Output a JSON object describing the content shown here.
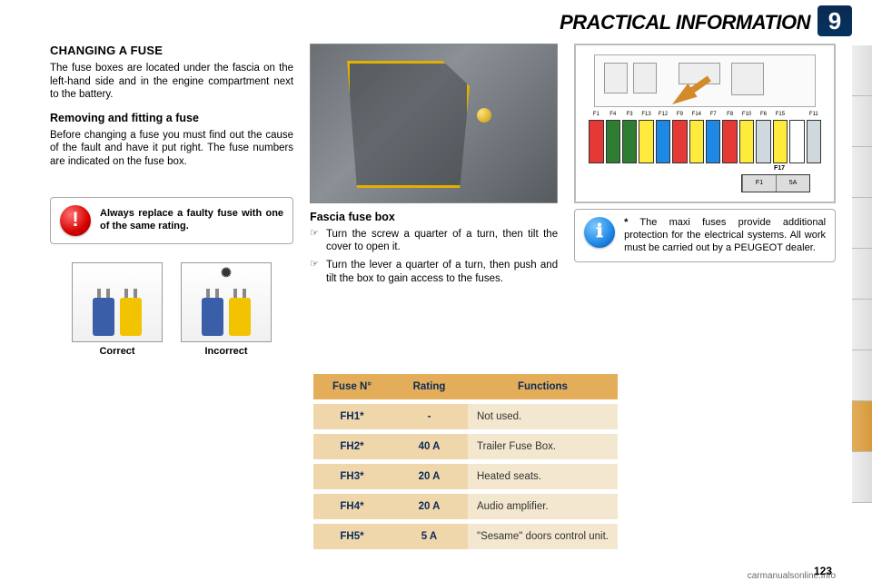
{
  "header": {
    "title": "PRACTICAL INFORMATION",
    "chapter": "9"
  },
  "left": {
    "h1": "CHANGING A FUSE",
    "p1": "The fuse boxes are located under the fascia on the left-hand side and in the engine compartment next to the bat­tery.",
    "h2": "Removing and fitting a fuse",
    "p2": "Before changing a fuse you must find out the cause of the fault and have it put right. The fuse numbers are indi­cated on the fuse box.",
    "warn": "Always replace a faulty fuse with one of the same rating.",
    "correct": "Correct",
    "incorrect": "Incorrect"
  },
  "mid": {
    "h3": "Fascia fuse box",
    "b1": "Turn the screw a quarter of a turn, then tilt the cover to open it.",
    "b2": "Turn the lever a quarter of a turn, then push and tilt the box to gain access to the fuses."
  },
  "right": {
    "note_prefix": "*",
    "note": "The maxi fuses provide ad­ditional protection for the electrical systems. All work must be carried out by a PEUGEOT dealer."
  },
  "diagram": {
    "labels": [
      "F1",
      "F4",
      "F3",
      "F13",
      "F12",
      "F9",
      "F14",
      "F7",
      "F8",
      "F10",
      "F6",
      "F15",
      "",
      "F11"
    ],
    "colors": [
      "#e53935",
      "#2e7d32",
      "#2e7d32",
      "#ffeb3b",
      "#1e88e5",
      "#e53935",
      "#ffeb3b",
      "#1e88e5",
      "#e53935",
      "#ffeb3b",
      "#cfd8dc",
      "#ffeb3b",
      "#ffffff",
      "#cfd8dc"
    ],
    "bigfuse_label": "F17",
    "bigfuse_cells": [
      "F1",
      "5A"
    ]
  },
  "table": {
    "headers": [
      "Fuse N°",
      "Rating",
      "Functions"
    ],
    "rows": [
      {
        "n": "FH1*",
        "r": "-",
        "f": "Not used."
      },
      {
        "n": "FH2*",
        "r": "40 A",
        "f": "Trailer Fuse Box."
      },
      {
        "n": "FH3*",
        "r": "20 A",
        "f": "Heated seats."
      },
      {
        "n": "FH4*",
        "r": "20 A",
        "f": "Audio amplifier."
      },
      {
        "n": "FH5*",
        "r": "5 A",
        "f": "\"Sesame\" doors control unit."
      }
    ],
    "header_bg": "#e4ad5a",
    "header_fg": "#0b2b58",
    "cell_key_bg": "#f0d7ab",
    "cell_val_bg": "#f3e7cf"
  },
  "tabs": {
    "count": 9,
    "active_index": 7,
    "active_color": "#e4ad5a"
  },
  "page_number": "123",
  "watermark": "carmanualsonline.info"
}
